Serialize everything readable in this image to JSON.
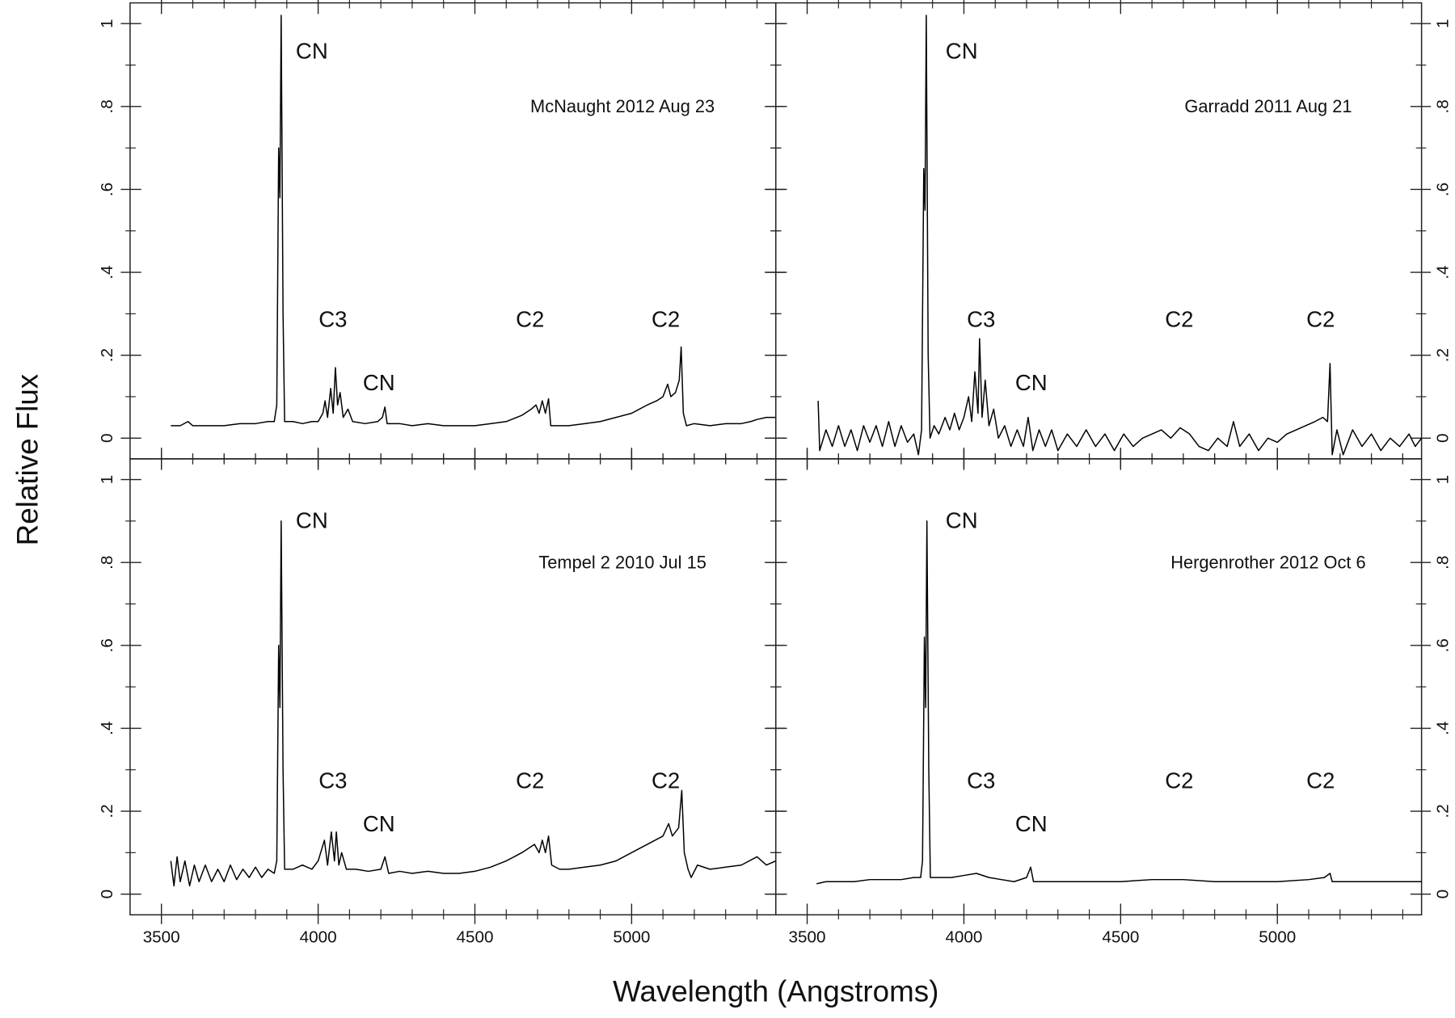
{
  "xlabel": "Wavelength (Angstroms)",
  "ylabel": "Relative Flux",
  "chart_data": [
    {
      "type": "line",
      "title": "McNaught 2012 Aug 23",
      "color": "#000000",
      "xlim": [
        3400,
        5460
      ],
      "ylim": [
        -0.05,
        1.05
      ],
      "xticks": [
        3500,
        4000,
        4500,
        5000
      ],
      "xminorticks": [
        3600,
        3700,
        3800,
        3900,
        4100,
        4200,
        4300,
        4400,
        4600,
        4700,
        4800,
        4900,
        5100,
        5200,
        5300,
        5400
      ],
      "yticks": [
        0,
        {
          "value": 0.2,
          "label": ".2"
        },
        {
          "value": 0.4,
          "label": ".4"
        },
        {
          "value": 0.6,
          "label": ".6"
        },
        {
          "value": 0.8,
          "label": ".8"
        },
        1
      ],
      "yminorticks": [
        0.1,
        0.3,
        0.5,
        0.7,
        0.9
      ],
      "annotations": [
        {
          "text": "CN",
          "x": 3980,
          "y": 0.93
        },
        {
          "text": "C3",
          "x": 4047,
          "y": 0.283
        },
        {
          "text": "CN",
          "x": 4194,
          "y": 0.13
        },
        {
          "text": "C2",
          "x": 4676,
          "y": 0.283
        },
        {
          "text": "C2",
          "x": 5109,
          "y": 0.283
        }
      ],
      "x": [
        3530,
        3560,
        3585,
        3600,
        3650,
        3700,
        3750,
        3800,
        3840,
        3860,
        3868,
        3874,
        3878,
        3882,
        3888,
        3893,
        3920,
        3950,
        3980,
        4000,
        4015,
        4022,
        4030,
        4040,
        4048,
        4055,
        4062,
        4070,
        4080,
        4095,
        4110,
        4150,
        4190,
        4205,
        4213,
        4220,
        4260,
        4300,
        4350,
        4400,
        4450,
        4500,
        4550,
        4600,
        4650,
        4680,
        4695,
        4705,
        4715,
        4725,
        4735,
        4742,
        4770,
        4800,
        4850,
        4900,
        4950,
        5000,
        5050,
        5080,
        5100,
        5115,
        5125,
        5140,
        5152,
        5158,
        5165,
        5175,
        5200,
        5250,
        5300,
        5350,
        5380,
        5400,
        5430,
        5460
      ],
      "values": [
        0.03,
        0.03,
        0.04,
        0.03,
        0.03,
        0.03,
        0.035,
        0.035,
        0.04,
        0.04,
        0.08,
        0.7,
        0.58,
        1.02,
        0.3,
        0.04,
        0.04,
        0.035,
        0.04,
        0.04,
        0.06,
        0.09,
        0.05,
        0.12,
        0.06,
        0.17,
        0.08,
        0.11,
        0.05,
        0.07,
        0.04,
        0.035,
        0.04,
        0.05,
        0.075,
        0.035,
        0.035,
        0.03,
        0.035,
        0.03,
        0.03,
        0.03,
        0.035,
        0.04,
        0.055,
        0.07,
        0.08,
        0.06,
        0.09,
        0.06,
        0.095,
        0.03,
        0.03,
        0.03,
        0.035,
        0.04,
        0.05,
        0.06,
        0.08,
        0.09,
        0.1,
        0.13,
        0.1,
        0.11,
        0.14,
        0.22,
        0.06,
        0.03,
        0.035,
        0.03,
        0.035,
        0.035,
        0.04,
        0.045,
        0.05,
        0.05
      ]
    },
    {
      "type": "line",
      "title": "Garradd 2011 Aug 21",
      "color": "#000000",
      "xlim": [
        3400,
        5460
      ],
      "ylim": [
        -0.05,
        1.05
      ],
      "xticks": [
        3500,
        4000,
        4500,
        5000
      ],
      "xminorticks": [
        3600,
        3700,
        3800,
        3900,
        4100,
        4200,
        4300,
        4400,
        4600,
        4700,
        4800,
        4900,
        5100,
        5200,
        5300,
        5400
      ],
      "yticks": [
        0,
        {
          "value": 0.2,
          "label": ".2"
        },
        {
          "value": 0.4,
          "label": ".4"
        },
        {
          "value": 0.6,
          "label": ".6"
        },
        {
          "value": 0.8,
          "label": ".8"
        },
        1
      ],
      "yminorticks": [
        0.1,
        0.3,
        0.5,
        0.7,
        0.9
      ],
      "annotations": [
        {
          "text": "CN",
          "x": 3993,
          "y": 0.93
        },
        {
          "text": "C3",
          "x": 4055,
          "y": 0.283
        },
        {
          "text": "CN",
          "x": 4215,
          "y": 0.13
        },
        {
          "text": "C2",
          "x": 4687,
          "y": 0.283
        },
        {
          "text": "C2",
          "x": 5138,
          "y": 0.283
        }
      ],
      "x": [
        3535,
        3540,
        3560,
        3580,
        3600,
        3620,
        3640,
        3660,
        3680,
        3700,
        3720,
        3740,
        3760,
        3780,
        3800,
        3820,
        3840,
        3855,
        3865,
        3872,
        3876,
        3880,
        3886,
        3892,
        3905,
        3920,
        3940,
        3955,
        3970,
        3985,
        4000,
        4015,
        4025,
        4035,
        4045,
        4050,
        4058,
        4068,
        4080,
        4095,
        4110,
        4130,
        4150,
        4170,
        4190,
        4205,
        4220,
        4240,
        4260,
        4280,
        4300,
        4330,
        4360,
        4390,
        4420,
        4450,
        4480,
        4510,
        4540,
        4570,
        4600,
        4630,
        4660,
        4690,
        4720,
        4750,
        4780,
        4810,
        4840,
        4860,
        4880,
        4910,
        4940,
        4970,
        5000,
        5030,
        5060,
        5090,
        5120,
        5145,
        5160,
        5168,
        5175,
        5190,
        5210,
        5240,
        5270,
        5300,
        5330,
        5360,
        5390,
        5420,
        5440,
        5460
      ],
      "values": [
        0.09,
        -0.03,
        0.02,
        -0.02,
        0.03,
        -0.02,
        0.02,
        -0.03,
        0.03,
        -0.01,
        0.03,
        -0.02,
        0.04,
        -0.02,
        0.03,
        -0.01,
        0.01,
        -0.04,
        0.02,
        0.65,
        0.55,
        1.02,
        0.2,
        0,
        0.03,
        0.01,
        0.05,
        0.02,
        0.06,
        0.02,
        0.05,
        0.1,
        0.04,
        0.16,
        0.06,
        0.24,
        0.05,
        0.14,
        0.03,
        0.07,
        0,
        0.03,
        -0.02,
        0.02,
        -0.02,
        0.05,
        -0.03,
        0.02,
        -0.02,
        0.02,
        -0.03,
        0.01,
        -0.02,
        0.02,
        -0.02,
        0.01,
        -0.03,
        0.01,
        -0.02,
        0,
        0.01,
        0.02,
        0,
        0.025,
        0.01,
        -0.02,
        -0.03,
        0,
        -0.02,
        0.04,
        -0.02,
        0.01,
        -0.03,
        0,
        -0.01,
        0.01,
        0.02,
        0.03,
        0.04,
        0.05,
        0.04,
        0.18,
        -0.04,
        0.02,
        -0.04,
        0.02,
        -0.02,
        0.01,
        -0.03,
        0,
        -0.02,
        0.01,
        -0.02,
        0
      ]
    },
    {
      "type": "line",
      "title": "Tempel 2 2010 Jul 15",
      "color": "#000000",
      "xlim": [
        3400,
        5460
      ],
      "ylim": [
        -0.05,
        1.05
      ],
      "xticks": [
        3500,
        4000,
        4500,
        5000
      ],
      "xminorticks": [
        3600,
        3700,
        3800,
        3900,
        4100,
        4200,
        4300,
        4400,
        4600,
        4700,
        4800,
        4900,
        5100,
        5200,
        5300,
        5400
      ],
      "yticks": [
        0,
        {
          "value": 0.2,
          "label": ".2"
        },
        {
          "value": 0.4,
          "label": ".4"
        },
        {
          "value": 0.6,
          "label": ".6"
        },
        {
          "value": 0.8,
          "label": ".8"
        },
        1
      ],
      "yminorticks": [
        0.1,
        0.3,
        0.5,
        0.7,
        0.9
      ],
      "annotations": [
        {
          "text": "CN",
          "x": 3980,
          "y": 0.897
        },
        {
          "text": "C3",
          "x": 4047,
          "y": 0.27
        },
        {
          "text": "CN",
          "x": 4194,
          "y": 0.166
        },
        {
          "text": "C2",
          "x": 4676,
          "y": 0.27
        },
        {
          "text": "C2",
          "x": 5109,
          "y": 0.27
        }
      ],
      "x": [
        3530,
        3540,
        3550,
        3560,
        3575,
        3590,
        3605,
        3620,
        3640,
        3660,
        3680,
        3700,
        3720,
        3740,
        3760,
        3780,
        3800,
        3820,
        3840,
        3860,
        3868,
        3874,
        3878,
        3882,
        3888,
        3893,
        3920,
        3950,
        3980,
        4000,
        4020,
        4030,
        4042,
        4052,
        4058,
        4066,
        4075,
        4090,
        4120,
        4160,
        4200,
        4213,
        4225,
        4260,
        4300,
        4350,
        4400,
        4450,
        4500,
        4550,
        4600,
        4650,
        4690,
        4705,
        4715,
        4725,
        4735,
        4745,
        4770,
        4800,
        4850,
        4900,
        4950,
        5000,
        5050,
        5100,
        5118,
        5130,
        5150,
        5160,
        5168,
        5180,
        5190,
        5210,
        5250,
        5300,
        5350,
        5400,
        5430,
        5460
      ],
      "values": [
        0.08,
        0.02,
        0.09,
        0.03,
        0.08,
        0.02,
        0.07,
        0.03,
        0.07,
        0.03,
        0.06,
        0.03,
        0.07,
        0.035,
        0.06,
        0.04,
        0.065,
        0.04,
        0.06,
        0.05,
        0.08,
        0.6,
        0.45,
        0.9,
        0.3,
        0.06,
        0.06,
        0.07,
        0.06,
        0.08,
        0.13,
        0.07,
        0.15,
        0.08,
        0.15,
        0.07,
        0.1,
        0.06,
        0.06,
        0.055,
        0.06,
        0.09,
        0.05,
        0.055,
        0.05,
        0.055,
        0.05,
        0.05,
        0.055,
        0.065,
        0.08,
        0.1,
        0.12,
        0.1,
        0.13,
        0.1,
        0.14,
        0.07,
        0.06,
        0.06,
        0.065,
        0.07,
        0.08,
        0.1,
        0.12,
        0.14,
        0.17,
        0.14,
        0.16,
        0.25,
        0.1,
        0.06,
        0.04,
        0.07,
        0.06,
        0.065,
        0.07,
        0.09,
        0.07,
        0.08
      ]
    },
    {
      "type": "line",
      "title": "Hergenrother 2012 Oct 6",
      "color": "#000000",
      "xlim": [
        3400,
        5460
      ],
      "ylim": [
        -0.05,
        1.05
      ],
      "xticks": [
        3500,
        4000,
        4500,
        5000
      ],
      "xminorticks": [
        3600,
        3700,
        3800,
        3900,
        4100,
        4200,
        4300,
        4400,
        4600,
        4700,
        4800,
        4900,
        5100,
        5200,
        5300,
        5400
      ],
      "yticks": [
        0,
        {
          "value": 0.2,
          "label": ".2"
        },
        {
          "value": 0.4,
          "label": ".4"
        },
        {
          "value": 0.6,
          "label": ".6"
        },
        {
          "value": 0.8,
          "label": ".8"
        },
        1
      ],
      "yminorticks": [
        0.1,
        0.3,
        0.5,
        0.7,
        0.9
      ],
      "annotations": [
        {
          "text": "CN",
          "x": 3993,
          "y": 0.897
        },
        {
          "text": "C3",
          "x": 4055,
          "y": 0.27
        },
        {
          "text": "CN",
          "x": 4215,
          "y": 0.166
        },
        {
          "text": "C2",
          "x": 4687,
          "y": 0.27
        },
        {
          "text": "C2",
          "x": 5138,
          "y": 0.27
        }
      ],
      "x": [
        3530,
        3560,
        3600,
        3650,
        3700,
        3750,
        3800,
        3840,
        3862,
        3868,
        3874,
        3878,
        3882,
        3888,
        3893,
        3920,
        3960,
        4000,
        4040,
        4080,
        4120,
        4160,
        4200,
        4213,
        4222,
        4260,
        4300,
        4400,
        4500,
        4600,
        4700,
        4800,
        4900,
        5000,
        5100,
        5150,
        5168,
        5175,
        5200,
        5300,
        5400,
        5460
      ],
      "values": [
        0.025,
        0.03,
        0.03,
        0.03,
        0.035,
        0.035,
        0.035,
        0.04,
        0.04,
        0.08,
        0.62,
        0.45,
        0.9,
        0.3,
        0.04,
        0.04,
        0.04,
        0.045,
        0.05,
        0.04,
        0.035,
        0.03,
        0.04,
        0.065,
        0.03,
        0.03,
        0.03,
        0.03,
        0.03,
        0.035,
        0.035,
        0.03,
        0.03,
        0.03,
        0.035,
        0.04,
        0.05,
        0.03,
        0.03,
        0.03,
        0.03,
        0.03
      ]
    }
  ]
}
